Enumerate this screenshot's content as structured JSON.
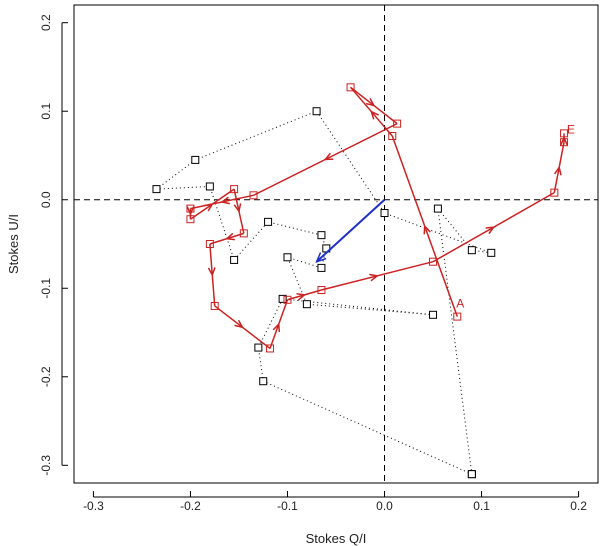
{
  "chart_data": {
    "type": "scatter",
    "title": "",
    "xlabel": "Stokes Q/I",
    "ylabel": "Stokes U/I",
    "xlim": [
      -0.32,
      0.22
    ],
    "ylim": [
      -0.32,
      0.22
    ],
    "xticks": [
      -0.3,
      -0.2,
      -0.1,
      0.0,
      0.1,
      0.2
    ],
    "yticks": [
      -0.3,
      -0.2,
      -0.1,
      0.0,
      0.1,
      0.2
    ],
    "xtick_labels": [
      "-0.3",
      "-0.2",
      "-0.1",
      "0.0",
      "0.1",
      "0.2"
    ],
    "ytick_labels": [
      "-0.3",
      "-0.2",
      "-0.1",
      "0.0",
      "0.1",
      "0.2"
    ],
    "reference_lines": {
      "x": 0.0,
      "y": 0.0
    },
    "grid": false,
    "series": [
      {
        "style": "dotted-black-squares",
        "color": "#000000",
        "x": [
          0.09,
          0.055,
          0.09,
          0.11,
          0.0,
          -0.07,
          -0.195,
          -0.235,
          -0.18,
          -0.155,
          -0.12,
          -0.065,
          -0.06,
          -0.065,
          -0.1,
          -0.08,
          0.05,
          -0.105,
          -0.13,
          -0.125,
          0.09
        ],
        "y": [
          -0.31,
          -0.01,
          -0.057,
          -0.06,
          -0.015,
          0.1,
          0.045,
          0.012,
          0.015,
          -0.068,
          -0.025,
          -0.04,
          -0.055,
          -0.077,
          -0.065,
          -0.118,
          -0.13,
          -0.112,
          -0.167,
          -0.205,
          -0.31
        ]
      },
      {
        "style": "red-arrows-squares",
        "color": "#cc2222",
        "x": [
          0.075,
          0.008,
          -0.035,
          0.013,
          -0.135,
          -0.2,
          -0.2,
          -0.155,
          -0.145,
          -0.18,
          -0.175,
          -0.118,
          -0.1,
          -0.065,
          0.05,
          0.175,
          0.185,
          0.185
        ],
        "y": [
          -0.132,
          0.072,
          0.127,
          0.086,
          0.005,
          -0.01,
          -0.022,
          0.012,
          -0.038,
          -0.05,
          -0.12,
          -0.168,
          -0.113,
          -0.102,
          -0.07,
          0.008,
          0.065,
          0.075
        ]
      },
      {
        "style": "blue-arrow",
        "color": "#1f2fc8",
        "x": [
          0.0,
          -0.07
        ],
        "y": [
          0.0,
          -0.07
        ]
      }
    ],
    "annotations": [
      {
        "text": "A",
        "x": 0.078,
        "y": -0.122,
        "color": "#cc2222"
      },
      {
        "text": "E",
        "x": 0.192,
        "y": 0.075,
        "color": "#cc2222"
      }
    ]
  }
}
